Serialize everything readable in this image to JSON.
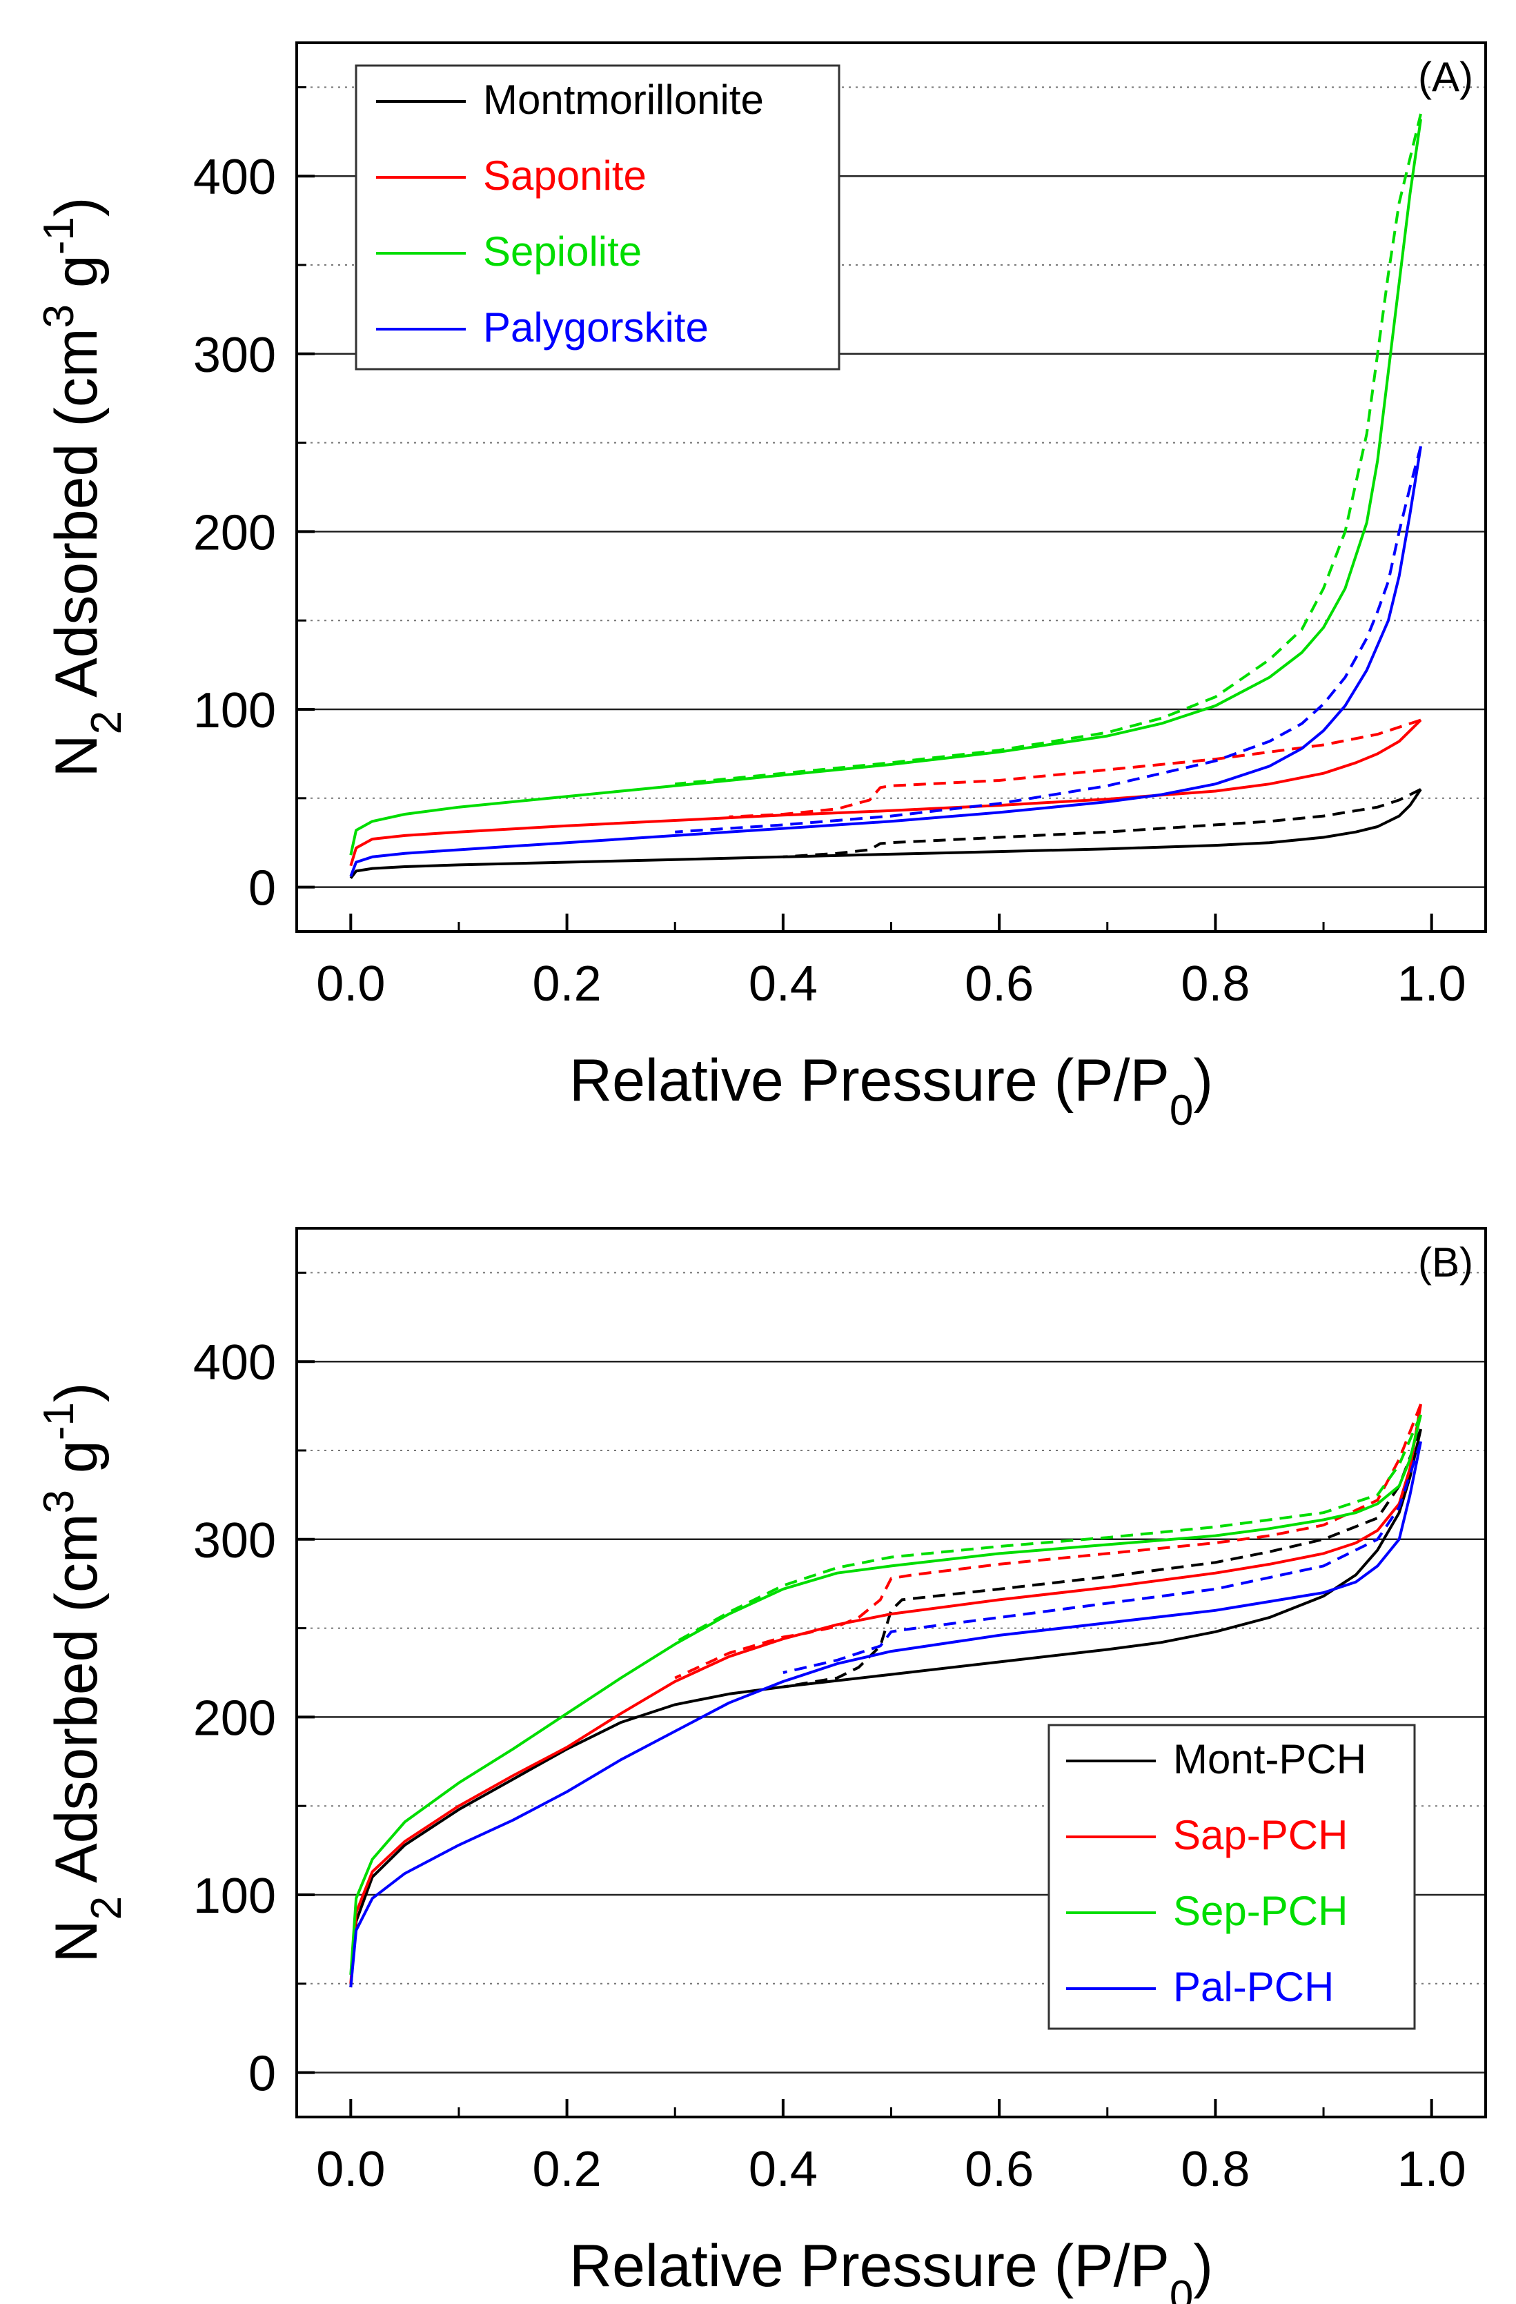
{
  "chart_data": [
    {
      "type": "line",
      "panel_label": "(A)",
      "xlabel": {
        "main": "Relative Pressure (P/P",
        "sub": "0",
        "close": ")"
      },
      "ylabel": {
        "a": "N",
        "a_sub": "2",
        "b": " Adsorbed (cm",
        "b_sup": "3",
        "c": " g",
        "c_sup": "-1",
        "d": ")"
      },
      "xlim": [
        -0.05,
        1.05
      ],
      "ylim": [
        -25,
        475
      ],
      "x_ticks": [
        "0.0",
        "0.2",
        "0.4",
        "0.6",
        "0.8",
        "1.0"
      ],
      "y_ticks": [
        "0",
        "100",
        "200",
        "300",
        "400"
      ],
      "grid": "major solid, minor dotted, horizontal",
      "legend_position": "top-left",
      "series": [
        {
          "name": "Montmorillonite",
          "color": "#000000",
          "adsorption": {
            "x": [
              0.0,
              0.005,
              0.02,
              0.05,
              0.1,
              0.2,
              0.3,
              0.4,
              0.5,
              0.6,
              0.7,
              0.8,
              0.85,
              0.9,
              0.93,
              0.95,
              0.97,
              0.98,
              0.99
            ],
            "y": [
              5,
              9,
              10.5,
              11.5,
              12.5,
              14,
              15.5,
              17,
              18.5,
              20,
              21.5,
              23.5,
              25,
              28,
              31,
              34,
              40,
              46,
              55
            ]
          },
          "desorption": {
            "x": [
              0.99,
              0.97,
              0.95,
              0.9,
              0.85,
              0.8,
              0.7,
              0.6,
              0.5,
              0.49,
              0.48,
              0.45,
              0.4
            ],
            "y": [
              55,
              49,
              45,
              40,
              37,
              35,
              31,
              28,
              25,
              24.5,
              21,
              19,
              17
            ]
          }
        },
        {
          "name": "Saponite",
          "color": "#ff0000",
          "adsorption": {
            "x": [
              0.0,
              0.005,
              0.02,
              0.05,
              0.1,
              0.2,
              0.3,
              0.4,
              0.5,
              0.6,
              0.7,
              0.8,
              0.85,
              0.9,
              0.93,
              0.95,
              0.97,
              0.98,
              0.99
            ],
            "y": [
              12,
              22,
              27,
              29,
              31,
              34.5,
              37.5,
              40.5,
              43,
              46,
              49.5,
              54,
              58,
              64,
              70,
              75,
              82,
              88,
              94
            ]
          },
          "desorption": {
            "x": [
              0.99,
              0.97,
              0.95,
              0.9,
              0.85,
              0.8,
              0.7,
              0.6,
              0.5,
              0.49,
              0.48,
              0.45,
              0.4,
              0.35
            ],
            "y": [
              94,
              90,
              86,
              80,
              76,
              72,
              66,
              60,
              57,
              56,
              49,
              44,
              41,
              39.5
            ]
          }
        },
        {
          "name": "Sepiolite",
          "color": "#00dd00",
          "adsorption": {
            "x": [
              0.0,
              0.005,
              0.02,
              0.05,
              0.1,
              0.2,
              0.3,
              0.4,
              0.5,
              0.6,
              0.7,
              0.75,
              0.8,
              0.85,
              0.88,
              0.9,
              0.92,
              0.94,
              0.95,
              0.96,
              0.97,
              0.98,
              0.99
            ],
            "y": [
              18,
              32,
              37,
              41,
              45,
              51,
              57,
              63,
              69,
              76,
              85,
              92,
              102,
              118,
              132,
              146,
              168,
              205,
              240,
              290,
              340,
              390,
              432
            ]
          },
          "desorption": {
            "x": [
              0.99,
              0.98,
              0.97,
              0.96,
              0.95,
              0.94,
              0.92,
              0.9,
              0.88,
              0.85,
              0.8,
              0.75,
              0.7,
              0.6,
              0.5,
              0.4,
              0.3
            ],
            "y": [
              435,
              410,
              385,
              345,
              300,
              255,
              200,
              168,
              145,
              128,
              107,
              95,
              87,
              77,
              70,
              64,
              58
            ]
          }
        },
        {
          "name": "Palygorskite",
          "color": "#0000ff",
          "adsorption": {
            "x": [
              0.0,
              0.005,
              0.02,
              0.05,
              0.1,
              0.2,
              0.3,
              0.4,
              0.5,
              0.6,
              0.7,
              0.75,
              0.8,
              0.85,
              0.88,
              0.9,
              0.92,
              0.94,
              0.96,
              0.97,
              0.98,
              0.99
            ],
            "y": [
              6,
              14,
              17,
              19,
              21,
              25,
              29,
              33,
              37,
              42,
              48,
              52,
              58,
              68,
              78,
              88,
              102,
              122,
              150,
              175,
              210,
              248
            ]
          },
          "desorption": {
            "x": [
              0.99,
              0.98,
              0.97,
              0.96,
              0.95,
              0.94,
              0.92,
              0.9,
              0.88,
              0.85,
              0.8,
              0.7,
              0.6,
              0.5,
              0.4,
              0.3
            ],
            "y": [
              248,
              225,
              200,
              172,
              155,
              140,
              118,
              103,
              92,
              82,
              71,
              57,
              47,
              40,
              35,
              31
            ]
          }
        }
      ]
    },
    {
      "type": "line",
      "panel_label": "(B)",
      "xlabel": {
        "main": "Relative Pressure (P/P",
        "sub": "0",
        "close": ")"
      },
      "ylabel": {
        "a": "N",
        "a_sub": "2",
        "b": " Adsorbed (cm",
        "b_sup": "3",
        "c": " g",
        "c_sup": "-1",
        "d": ")"
      },
      "xlim": [
        -0.05,
        1.05
      ],
      "ylim": [
        -25,
        475
      ],
      "x_ticks": [
        "0.0",
        "0.2",
        "0.4",
        "0.6",
        "0.8",
        "1.0"
      ],
      "y_ticks": [
        "0",
        "100",
        "200",
        "300",
        "400"
      ],
      "grid": "major solid, minor dotted, horizontal",
      "legend_position": "bottom-right",
      "series": [
        {
          "name": "Mont-PCH",
          "color": "#000000",
          "adsorption": {
            "x": [
              0.0,
              0.005,
              0.02,
              0.05,
              0.1,
              0.15,
              0.2,
              0.25,
              0.3,
              0.35,
              0.4,
              0.5,
              0.6,
              0.7,
              0.75,
              0.8,
              0.85,
              0.9,
              0.93,
              0.95,
              0.97,
              0.98,
              0.99
            ],
            "y": [
              48,
              85,
              110,
              128,
              148,
              165,
              182,
              197,
              207,
              213,
              217,
              224,
              231,
              238,
              242,
              248,
              256,
              268,
              280,
              294,
              315,
              335,
              362
            ]
          },
          "desorption": {
            "x": [
              0.99,
              0.97,
              0.95,
              0.9,
              0.85,
              0.8,
              0.7,
              0.6,
              0.51,
              0.5,
              0.49,
              0.47,
              0.45,
              0.42,
              0.4
            ],
            "y": [
              362,
              330,
              312,
              300,
              293,
              287,
              279,
              272,
              266,
              260,
              240,
              228,
              222,
              219,
              217
            ]
          }
        },
        {
          "name": "Sap-PCH",
          "color": "#ff0000",
          "adsorption": {
            "x": [
              0.0,
              0.005,
              0.02,
              0.05,
              0.1,
              0.15,
              0.2,
              0.25,
              0.3,
              0.35,
              0.4,
              0.45,
              0.5,
              0.6,
              0.7,
              0.8,
              0.85,
              0.9,
              0.93,
              0.95,
              0.97,
              0.98,
              0.99
            ],
            "y": [
              50,
              90,
              113,
              130,
              150,
              167,
              183,
              202,
              220,
              234,
              244,
              252,
              258,
              266,
              273,
              281,
              286,
              292,
              298,
              305,
              320,
              340,
              376
            ]
          },
          "desorption": {
            "x": [
              0.99,
              0.97,
              0.95,
              0.9,
              0.85,
              0.8,
              0.7,
              0.6,
              0.52,
              0.5,
              0.49,
              0.47,
              0.45,
              0.42,
              0.4,
              0.35,
              0.3
            ],
            "y": [
              376,
              345,
              322,
              308,
              302,
              298,
              292,
              286,
              280,
              278,
              266,
              256,
              251,
              247,
              245,
              236,
              222
            ]
          }
        },
        {
          "name": "Sep-PCH",
          "color": "#00dd00",
          "adsorption": {
            "x": [
              0.0,
              0.005,
              0.02,
              0.05,
              0.1,
              0.15,
              0.2,
              0.25,
              0.3,
              0.35,
              0.4,
              0.45,
              0.5,
              0.6,
              0.7,
              0.8,
              0.85,
              0.9,
              0.93,
              0.95,
              0.97,
              0.98,
              0.99
            ],
            "y": [
              55,
              98,
              120,
              141,
              163,
              182,
              202,
              222,
              241,
              258,
              272,
              281,
              285,
              292,
              297,
              302,
              306,
              311,
              315,
              320,
              330,
              345,
              370
            ]
          },
          "desorption": {
            "x": [
              0.99,
              0.97,
              0.95,
              0.9,
              0.85,
              0.8,
              0.7,
              0.6,
              0.5,
              0.45,
              0.4,
              0.35,
              0.3
            ],
            "y": [
              370,
              342,
              325,
              315,
              311,
              307,
              301,
              296,
              290,
              284,
              274,
              259,
              242
            ]
          }
        },
        {
          "name": "Pal-PCH",
          "color": "#0000ff",
          "adsorption": {
            "x": [
              0.0,
              0.005,
              0.02,
              0.05,
              0.1,
              0.15,
              0.2,
              0.25,
              0.3,
              0.35,
              0.4,
              0.45,
              0.5,
              0.6,
              0.7,
              0.8,
              0.85,
              0.9,
              0.93,
              0.95,
              0.97,
              0.98,
              0.99
            ],
            "y": [
              48,
              80,
              98,
              112,
              128,
              142,
              158,
              176,
              192,
              208,
              220,
              230,
              237,
              246,
              253,
              260,
              265,
              270,
              276,
              285,
              300,
              325,
              355
            ]
          },
          "desorption": {
            "x": [
              0.99,
              0.97,
              0.95,
              0.9,
              0.8,
              0.7,
              0.6,
              0.51,
              0.5,
              0.49,
              0.47,
              0.45,
              0.4
            ],
            "y": [
              355,
              318,
              300,
              285,
              272,
              264,
              256,
              249,
              248,
              240,
              236,
              232,
              225
            ]
          }
        }
      ]
    }
  ]
}
